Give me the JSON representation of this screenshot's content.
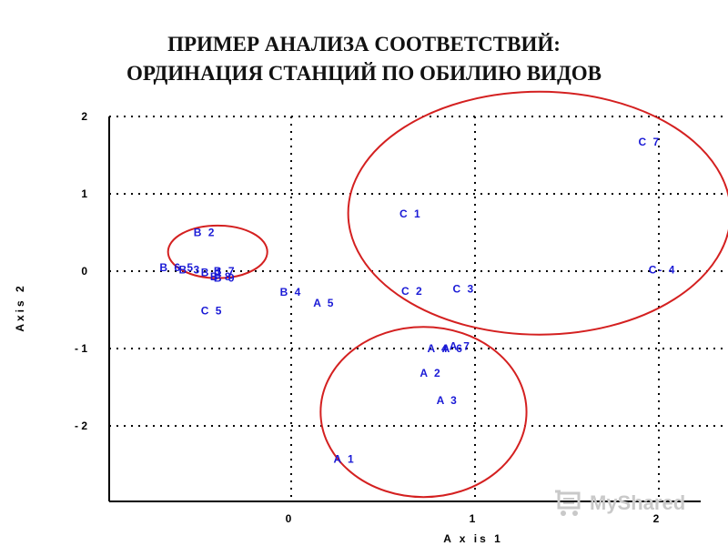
{
  "page": {
    "title_line1": "ПРИМЕР АНАЛИЗА СООТВЕТСТВИЙ:",
    "title_line2": "ОРДИНАЦИЯ СТАНЦИЙ ПО ОБИЛИЮ ВИДОВ",
    "watermark": "MyShared"
  },
  "chart_data": {
    "type": "scatter",
    "title": "ПРИМЕР АНАЛИЗА СООТВЕТСТВИЙ: ОРДИНАЦИЯ СТАНЦИЙ ПО ОБИЛИЮ ВИДОВ",
    "xlabel": "A x is 1",
    "ylabel": "Axis 2",
    "xlim": [
      -1,
      2.2
    ],
    "ylim": [
      -3,
      2
    ],
    "xticks": [
      0,
      1,
      2
    ],
    "xtick_labels": [
      "0",
      "1",
      "2"
    ],
    "yticks": [
      2,
      1,
      0,
      -1,
      -2
    ],
    "ytick_labels": [
      "2",
      "1",
      "0",
      "- 1",
      "- 2"
    ],
    "grid": true,
    "grid_style": "dotted",
    "point_color": "#1a1ad6",
    "ellipse_color": "#d42020",
    "points": [
      {
        "label": "C 7",
        "x": 1.95,
        "y": 1.67
      },
      {
        "label": "C 1",
        "x": 0.65,
        "y": 0.74
      },
      {
        "label": "C- 4",
        "x": 2.02,
        "y": 0.02
      },
      {
        "label": "B 2",
        "x": -0.47,
        "y": 0.5
      },
      {
        "label": "B 6 5",
        "x": -0.62,
        "y": 0.05
      },
      {
        "label": "B 3",
        "x": -0.55,
        "y": 0.02
      },
      {
        "label": "B 1",
        "x": -0.43,
        "y": -0.02
      },
      {
        "label": "B 7",
        "x": -0.36,
        "y": 0.0
      },
      {
        "label": "B 8",
        "x": -0.38,
        "y": -0.07
      },
      {
        "label": "B 9",
        "x": -0.36,
        "y": -0.09
      },
      {
        "label": "B 4",
        "x": 0.0,
        "y": -0.27
      },
      {
        "label": "A 5",
        "x": 0.18,
        "y": -0.41
      },
      {
        "label": "C 5",
        "x": -0.43,
        "y": -0.51
      },
      {
        "label": "C 2",
        "x": 0.66,
        "y": -0.26
      },
      {
        "label": "C 3",
        "x": 0.94,
        "y": -0.23
      },
      {
        "label": "A 4",
        "x": 0.8,
        "y": -1.0
      },
      {
        "label": "A 6",
        "x": 0.88,
        "y": -1.0
      },
      {
        "label": "A 7",
        "x": 0.92,
        "y": -0.97
      },
      {
        "label": "A 2",
        "x": 0.76,
        "y": -1.32
      },
      {
        "label": "A 3",
        "x": 0.85,
        "y": -1.67
      },
      {
        "label": "A 1",
        "x": 0.29,
        "y": -2.43
      }
    ],
    "ellipses": [
      {
        "cx": -0.4,
        "cy": 0.25,
        "rx": 0.27,
        "ry": 0.34
      },
      {
        "cx": 1.35,
        "cy": 0.75,
        "rx": 1.04,
        "ry": 1.57
      },
      {
        "cx": 0.72,
        "cy": -1.82,
        "rx": 0.56,
        "ry": 1.1
      }
    ]
  }
}
